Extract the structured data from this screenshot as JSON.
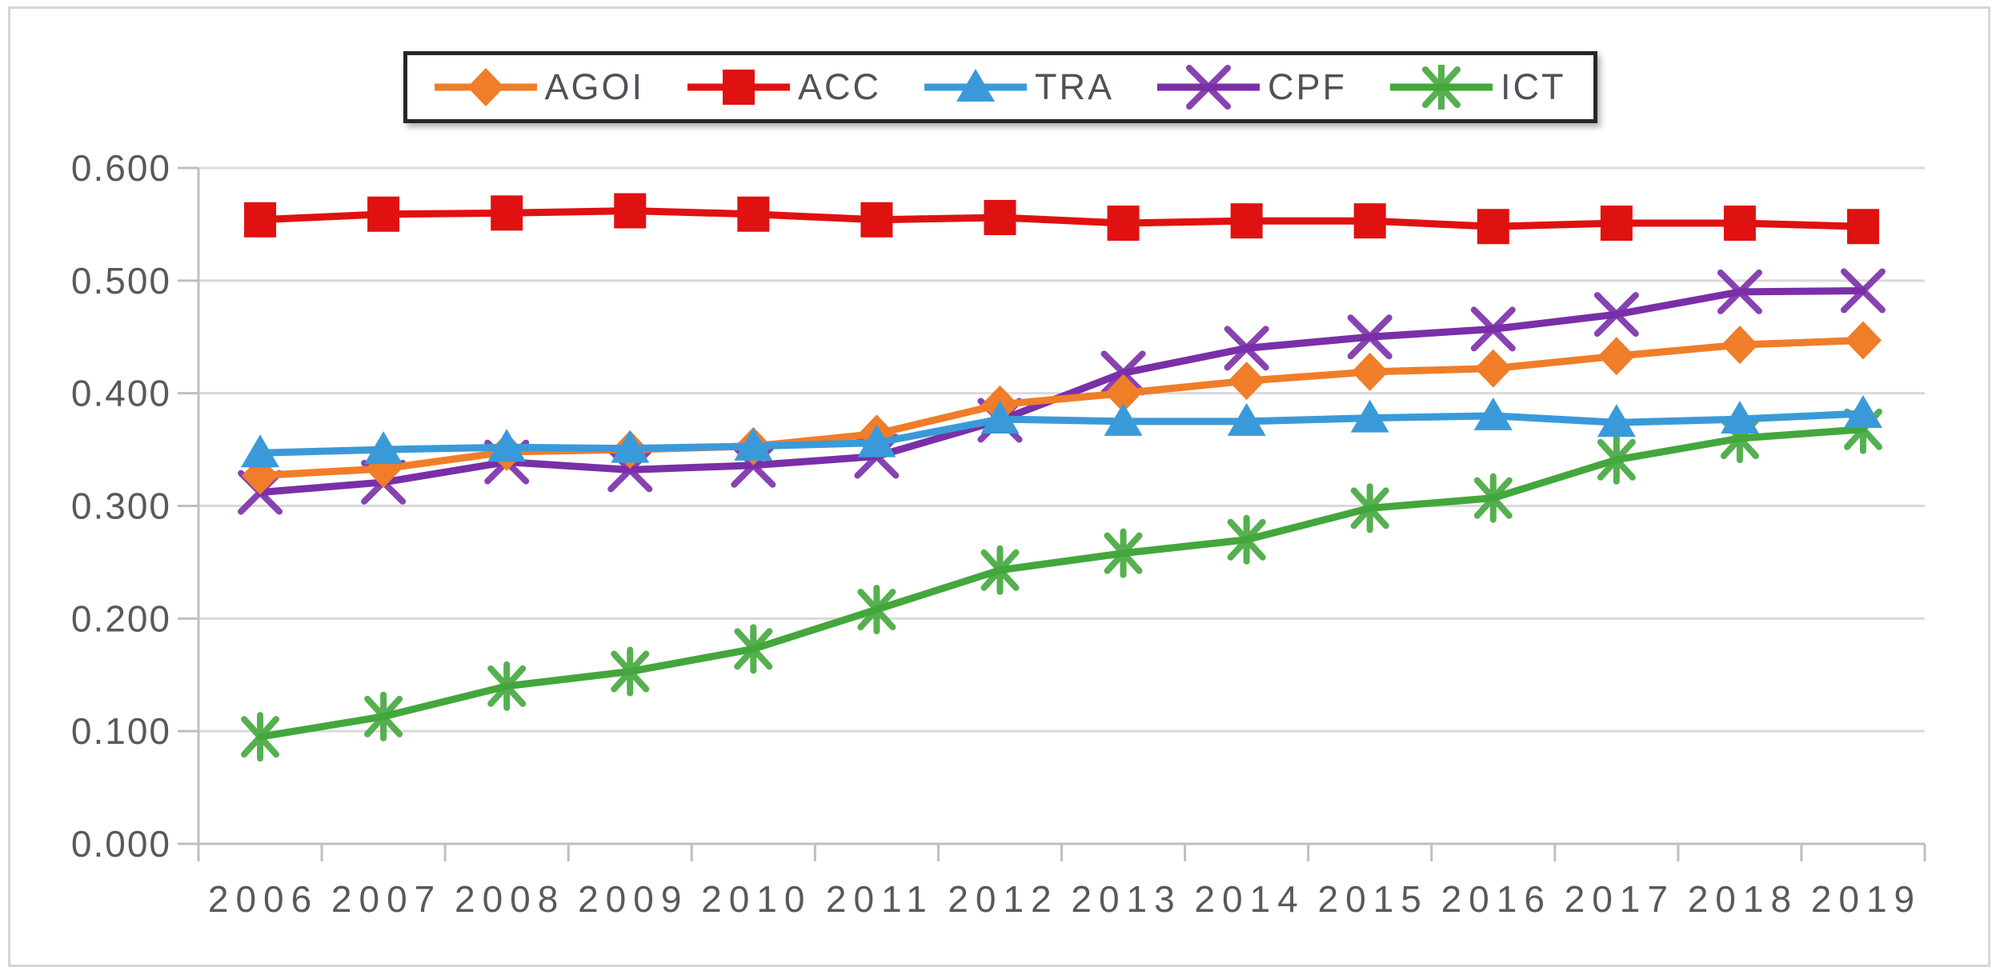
{
  "chart_data": {
    "type": "line",
    "title": "",
    "xlabel": "",
    "ylabel": "",
    "legend_position": "top-center",
    "grid": true,
    "categories": [
      "2006",
      "2007",
      "2008",
      "2009",
      "2010",
      "2011",
      "2012",
      "2013",
      "2014",
      "2015",
      "2016",
      "2017",
      "2018",
      "2019"
    ],
    "y_axis": {
      "min": 0.0,
      "max": 0.6,
      "step": 0.1,
      "tick_labels": [
        "0.600",
        "0.500",
        "0.400",
        "0.300",
        "0.200",
        "0.100",
        "0.000"
      ]
    },
    "series": [
      {
        "name": "AGOI",
        "marker": "diamond",
        "color": "#F07D28",
        "values": [
          0.327,
          0.333,
          0.348,
          0.35,
          0.353,
          0.364,
          0.39,
          0.4,
          0.411,
          0.419,
          0.422,
          0.433,
          0.443,
          0.447
        ]
      },
      {
        "name": "ACC",
        "marker": "square",
        "color": "#E01111",
        "values": [
          0.554,
          0.559,
          0.56,
          0.562,
          0.559,
          0.554,
          0.556,
          0.551,
          0.553,
          0.553,
          0.548,
          0.551,
          0.551,
          0.548
        ]
      },
      {
        "name": "TRA",
        "marker": "triangle",
        "color": "#3A9AD9",
        "values": [
          0.347,
          0.35,
          0.352,
          0.351,
          0.353,
          0.356,
          0.377,
          0.375,
          0.375,
          0.378,
          0.38,
          0.374,
          0.377,
          0.382
        ]
      },
      {
        "name": "CPF",
        "marker": "x",
        "color": "#7A2FA8",
        "values": [
          0.312,
          0.321,
          0.339,
          0.332,
          0.336,
          0.344,
          0.376,
          0.418,
          0.44,
          0.45,
          0.457,
          0.47,
          0.49,
          0.491
        ]
      },
      {
        "name": "ICT",
        "marker": "asterisk",
        "color": "#43A73C",
        "values": [
          0.095,
          0.113,
          0.14,
          0.153,
          0.173,
          0.208,
          0.243,
          0.258,
          0.27,
          0.298,
          0.307,
          0.341,
          0.36,
          0.368
        ]
      }
    ],
    "style_colors": {
      "grid": "#D9D9D9",
      "axis": "#BFBFBF",
      "tick_text": "#595959",
      "legend_text": "#4F5257",
      "legend_border": "#262626",
      "background": "#FFFFFF",
      "outer_frame": "#D6D6D6"
    }
  }
}
